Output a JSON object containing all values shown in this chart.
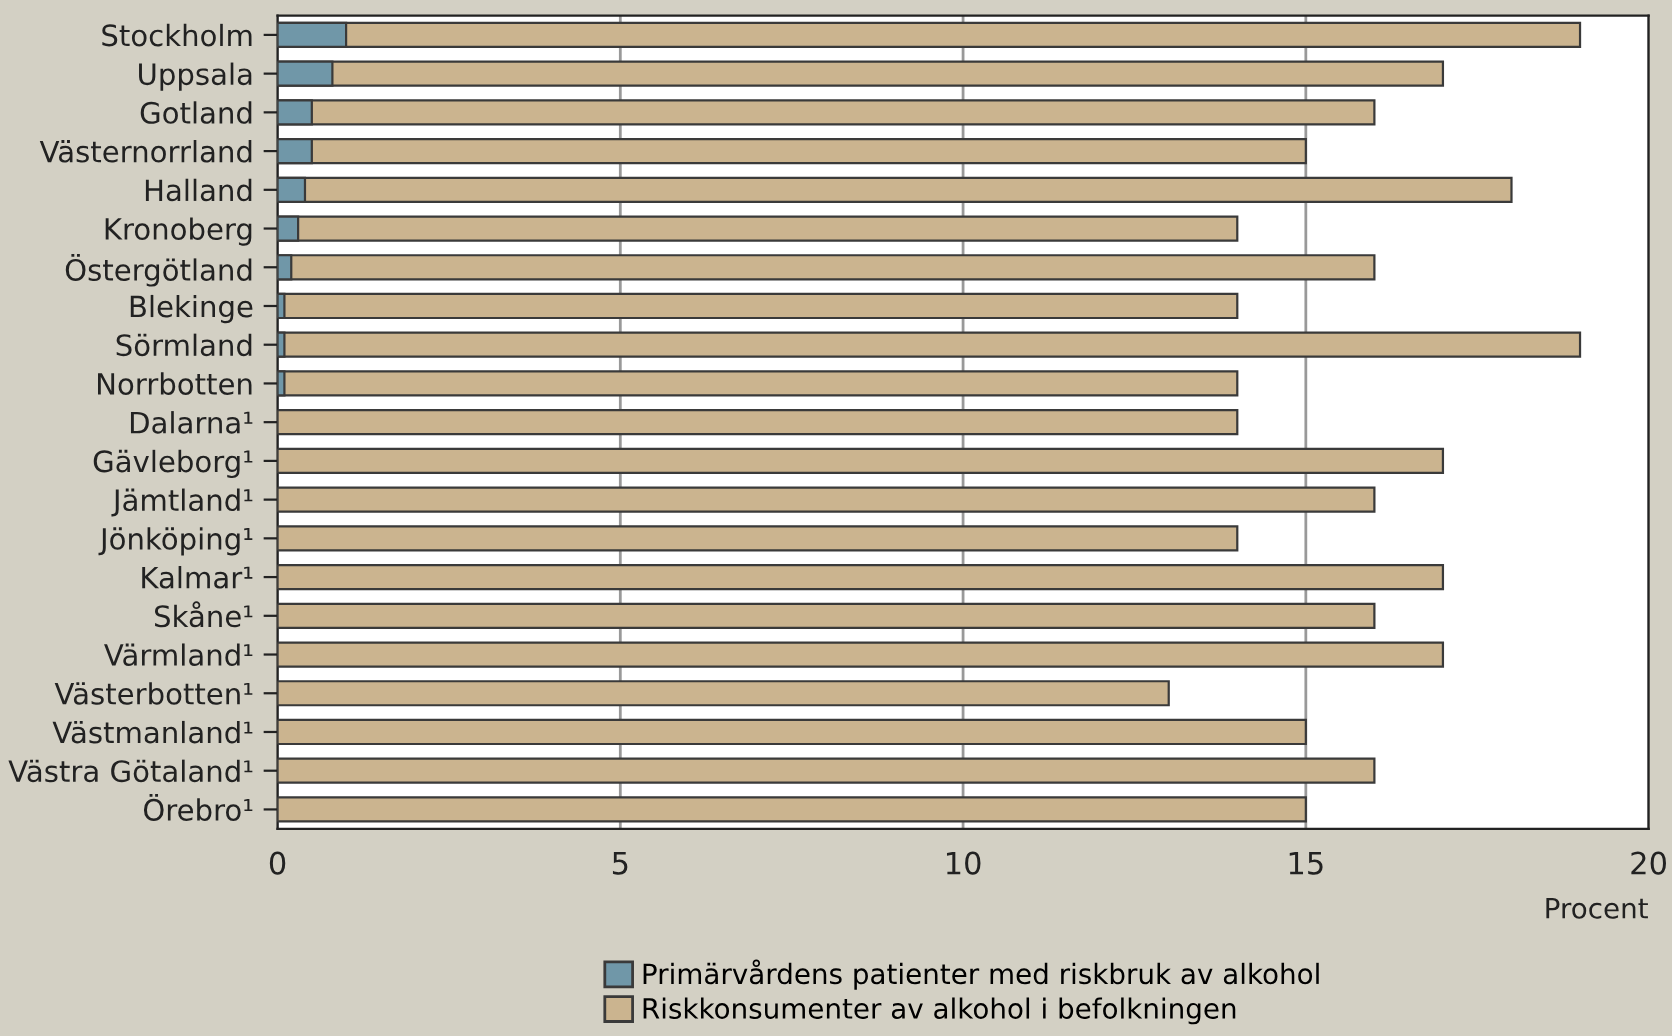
{
  "chart_data": {
    "type": "bar",
    "orientation": "horizontal",
    "xlabel": "Procent",
    "categories": [
      "Stockholm",
      "Uppsala",
      "Gotland",
      "Västernorrland",
      "Halland",
      "Kronoberg",
      "Östergötland",
      "Blekinge",
      "Sörmland",
      "Norrbotten",
      "Dalarna¹",
      "Gävleborg¹",
      "Jämtland¹",
      "Jönköping¹",
      "Kalmar¹",
      "Skåne¹",
      "Värmland¹",
      "Västerbotten¹",
      "Västmanland¹",
      "Västra Götaland¹",
      "Örebro¹"
    ],
    "series": [
      {
        "name": "Primärvårdens patienter med riskbruk av alkohol",
        "color": "#7097a8",
        "values": [
          1.0,
          0.8,
          0.5,
          0.5,
          0.4,
          0.3,
          0.2,
          0.1,
          0.1,
          0.1,
          null,
          null,
          null,
          null,
          null,
          null,
          null,
          null,
          null,
          null,
          null
        ]
      },
      {
        "name": "Riskkonsumenter av alkohol i befolkningen",
        "color": "#cbb48f",
        "values": [
          19,
          17,
          16,
          15,
          18,
          14,
          16,
          14,
          19,
          14,
          14,
          17,
          16,
          14,
          17,
          16,
          17,
          13,
          15,
          16,
          15
        ]
      }
    ],
    "xlim": [
      0,
      20
    ],
    "xticks": [
      0,
      5,
      10,
      15,
      20
    ],
    "grid": "x",
    "legend": "bottom"
  }
}
